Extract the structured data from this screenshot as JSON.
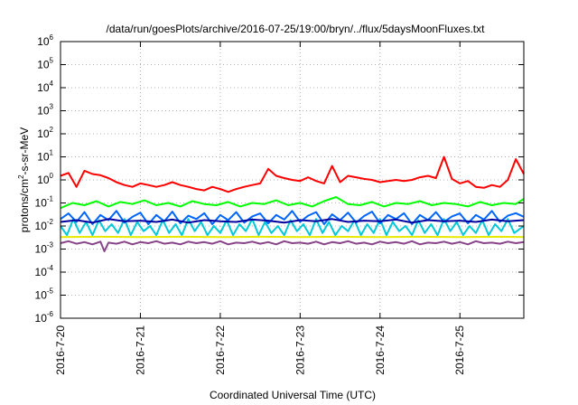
{
  "chart_data": {
    "type": "line",
    "title": "/data/run/goesPlots/archive/2016-07-25/19:00/bryn/../flux/5daysMoonFluxes.txt",
    "xlabel": "Coordinated Universal Time (UTC)",
    "ylabel": {
      "base": "protons/cm",
      "sup": "2",
      "rest": "-s-sr-MeV"
    },
    "x_range": [
      "2016-07-20",
      "2016-07-25 19:00"
    ],
    "x_ticks": [
      "2016-7-20",
      "2016-7-21",
      "2016-7-22",
      "2016-7-23",
      "2016-7-24",
      "2016-7-25"
    ],
    "y_scale": "log",
    "ylim": [
      1e-06,
      1000000.0
    ],
    "y_ticks": [
      {
        "base": "10",
        "exp": "-6",
        "value": 1e-06
      },
      {
        "base": "10",
        "exp": "-5",
        "value": 1e-05
      },
      {
        "base": "10",
        "exp": "-4",
        "value": 0.0001
      },
      {
        "base": "10",
        "exp": "-3",
        "value": 0.001
      },
      {
        "base": "10",
        "exp": "-2",
        "value": 0.01
      },
      {
        "base": "10",
        "exp": "-1",
        "value": 0.1
      },
      {
        "base": "10",
        "exp": "0",
        "value": 1
      },
      {
        "base": "10",
        "exp": "1",
        "value": 10
      },
      {
        "base": "10",
        "exp": "2",
        "value": 100
      },
      {
        "base": "10",
        "exp": "3",
        "value": 1000
      },
      {
        "base": "10",
        "exp": "4",
        "value": 10000
      },
      {
        "base": "10",
        "exp": "5",
        "value": 100000
      },
      {
        "base": "10",
        "exp": "6",
        "value": 1000000
      }
    ],
    "grid": true,
    "legend": "none",
    "series": [
      {
        "color": "#ff0000",
        "x_days": [
          0.0,
          0.1,
          0.2,
          0.3,
          0.4,
          0.5,
          0.6,
          0.7,
          0.8,
          0.9,
          1.0,
          1.1,
          1.2,
          1.3,
          1.4,
          1.5,
          1.6,
          1.7,
          1.8,
          1.9,
          2.0,
          2.1,
          2.2,
          2.3,
          2.4,
          2.5,
          2.6,
          2.7,
          2.8,
          2.9,
          3.0,
          3.1,
          3.2,
          3.3,
          3.4,
          3.5,
          3.6,
          3.7,
          3.8,
          3.9,
          4.0,
          4.1,
          4.2,
          4.3,
          4.4,
          4.5,
          4.6,
          4.7,
          4.8,
          4.9,
          5.0,
          5.1,
          5.2,
          5.3,
          5.4,
          5.5,
          5.6,
          5.7,
          5.8
        ],
        "values": [
          1.5,
          2.0,
          0.5,
          2.5,
          1.8,
          1.6,
          1.2,
          0.8,
          0.6,
          0.5,
          0.7,
          0.6,
          0.5,
          0.6,
          0.8,
          0.6,
          0.5,
          0.4,
          0.35,
          0.5,
          0.4,
          0.3,
          0.4,
          0.5,
          0.6,
          0.7,
          3.0,
          1.5,
          1.2,
          1.0,
          0.9,
          1.3,
          0.9,
          0.7,
          4.0,
          0.8,
          1.5,
          1.3,
          1.1,
          1.0,
          0.8,
          0.9,
          1.0,
          0.9,
          1.0,
          1.3,
          1.5,
          1.2,
          10.0,
          1.1,
          0.7,
          0.9,
          0.5,
          0.45,
          0.6,
          0.5,
          1.0,
          8.0,
          1.8
        ]
      },
      {
        "color": "#00ff00",
        "x_days": [
          0.0,
          0.15,
          0.3,
          0.45,
          0.6,
          0.75,
          0.9,
          1.05,
          1.2,
          1.35,
          1.5,
          1.65,
          1.8,
          1.95,
          2.1,
          2.25,
          2.4,
          2.55,
          2.7,
          2.85,
          3.0,
          3.15,
          3.3,
          3.45,
          3.6,
          3.75,
          3.9,
          4.05,
          4.2,
          4.35,
          4.5,
          4.65,
          4.8,
          4.95,
          5.1,
          5.25,
          5.4,
          5.55,
          5.7,
          5.8
        ],
        "values": [
          0.06,
          0.1,
          0.08,
          0.12,
          0.07,
          0.11,
          0.09,
          0.13,
          0.08,
          0.1,
          0.07,
          0.12,
          0.09,
          0.08,
          0.11,
          0.07,
          0.1,
          0.09,
          0.13,
          0.08,
          0.1,
          0.07,
          0.12,
          0.18,
          0.09,
          0.08,
          0.11,
          0.07,
          0.1,
          0.09,
          0.12,
          0.08,
          0.1,
          0.09,
          0.07,
          0.11,
          0.08,
          0.1,
          0.09,
          0.15
        ]
      },
      {
        "color": "#00c8d8",
        "x_days": [
          0.0,
          0.08,
          0.16,
          0.24,
          0.32,
          0.4,
          0.48,
          0.56,
          0.64,
          0.72,
          0.8,
          0.88,
          0.96,
          1.04,
          1.12,
          1.2,
          1.28,
          1.36,
          1.44,
          1.52,
          1.6,
          1.68,
          1.76,
          1.84,
          1.92,
          2.0,
          2.08,
          2.16,
          2.24,
          2.32,
          2.4,
          2.48,
          2.56,
          2.64,
          2.72,
          2.8,
          2.88,
          2.96,
          3.04,
          3.12,
          3.2,
          3.28,
          3.36,
          3.44,
          3.52,
          3.6,
          3.68,
          3.76,
          3.84,
          3.92,
          4.0,
          4.08,
          4.16,
          4.24,
          4.32,
          4.4,
          4.48,
          4.56,
          4.64,
          4.72,
          4.8,
          4.88,
          4.96,
          5.04,
          5.12,
          5.2,
          5.28,
          5.36,
          5.44,
          5.52,
          5.6,
          5.68,
          5.8
        ],
        "values": [
          0.01,
          0.004,
          0.02,
          0.005,
          0.015,
          0.004,
          0.018,
          0.006,
          0.012,
          0.005,
          0.02,
          0.004,
          0.015,
          0.006,
          0.01,
          0.004,
          0.018,
          0.005,
          0.012,
          0.004,
          0.02,
          0.006,
          0.015,
          0.004,
          0.01,
          0.005,
          0.018,
          0.004,
          0.012,
          0.006,
          0.02,
          0.004,
          0.015,
          0.005,
          0.01,
          0.004,
          0.018,
          0.006,
          0.012,
          0.004,
          0.02,
          0.005,
          0.015,
          0.004,
          0.01,
          0.006,
          0.018,
          0.004,
          0.012,
          0.005,
          0.02,
          0.004,
          0.015,
          0.006,
          0.01,
          0.004,
          0.018,
          0.005,
          0.012,
          0.004,
          0.02,
          0.006,
          0.015,
          0.004,
          0.01,
          0.005,
          0.018,
          0.004,
          0.012,
          0.006,
          0.02,
          0.005,
          0.01
        ]
      },
      {
        "color": "#0066ff",
        "x_days": [
          0.0,
          0.1,
          0.2,
          0.3,
          0.4,
          0.5,
          0.6,
          0.7,
          0.8,
          0.9,
          1.0,
          1.1,
          1.2,
          1.3,
          1.4,
          1.5,
          1.6,
          1.7,
          1.8,
          1.9,
          2.0,
          2.1,
          2.2,
          2.3,
          2.4,
          2.5,
          2.6,
          2.7,
          2.8,
          2.9,
          3.0,
          3.1,
          3.2,
          3.3,
          3.4,
          3.5,
          3.6,
          3.7,
          3.8,
          3.9,
          4.0,
          4.1,
          4.2,
          4.3,
          4.4,
          4.5,
          4.6,
          4.7,
          4.8,
          4.9,
          5.0,
          5.1,
          5.2,
          5.3,
          5.4,
          5.5,
          5.6,
          5.7,
          5.8
        ],
        "values": [
          0.02,
          0.035,
          0.015,
          0.04,
          0.012,
          0.03,
          0.018,
          0.045,
          0.014,
          0.025,
          0.038,
          0.012,
          0.03,
          0.016,
          0.042,
          0.013,
          0.028,
          0.02,
          0.036,
          0.012,
          0.03,
          0.018,
          0.04,
          0.014,
          0.026,
          0.035,
          0.013,
          0.03,
          0.019,
          0.045,
          0.015,
          0.028,
          0.04,
          0.012,
          0.032,
          0.018,
          0.038,
          0.014,
          0.027,
          0.042,
          0.013,
          0.03,
          0.02,
          0.036,
          0.012,
          0.03,
          0.018,
          0.04,
          0.015,
          0.026,
          0.035,
          0.013,
          0.03,
          0.019,
          0.045,
          0.015,
          0.028,
          0.036,
          0.025
        ]
      },
      {
        "color": "#0000a0",
        "x_days": [
          0.0,
          0.2,
          0.4,
          0.6,
          0.8,
          1.0,
          1.2,
          1.4,
          1.6,
          1.8,
          2.0,
          2.2,
          2.4,
          2.6,
          2.8,
          3.0,
          3.2,
          3.4,
          3.6,
          3.8,
          4.0,
          4.2,
          4.4,
          4.6,
          4.8,
          5.0,
          5.2,
          5.4,
          5.6,
          5.8
        ],
        "values": [
          0.015,
          0.018,
          0.014,
          0.02,
          0.016,
          0.017,
          0.015,
          0.019,
          0.014,
          0.018,
          0.016,
          0.015,
          0.019,
          0.017,
          0.014,
          0.018,
          0.016,
          0.02,
          0.015,
          0.017,
          0.016,
          0.019,
          0.014,
          0.018,
          0.016,
          0.017,
          0.015,
          0.019,
          0.016,
          0.018
        ]
      },
      {
        "color": "#e8e800",
        "x_days": [
          0.0,
          0.5,
          1.0,
          1.5,
          2.0,
          2.5,
          3.0,
          3.5,
          4.0,
          4.5,
          5.0,
          5.5,
          5.8
        ],
        "values": [
          0.0033,
          0.0034,
          0.0033,
          0.0034,
          0.0033,
          0.0034,
          0.0033,
          0.0034,
          0.0033,
          0.0034,
          0.0033,
          0.0034,
          0.0033
        ]
      },
      {
        "color": "#884488",
        "x_days": [
          0.0,
          0.1,
          0.2,
          0.3,
          0.4,
          0.5,
          0.55,
          0.6,
          0.7,
          0.8,
          0.9,
          1.0,
          1.1,
          1.2,
          1.3,
          1.4,
          1.5,
          1.6,
          1.7,
          1.8,
          1.9,
          2.0,
          2.1,
          2.2,
          2.3,
          2.4,
          2.5,
          2.6,
          2.7,
          2.8,
          2.9,
          3.0,
          3.1,
          3.2,
          3.3,
          3.4,
          3.5,
          3.6,
          3.7,
          3.8,
          3.9,
          4.0,
          4.1,
          4.2,
          4.3,
          4.4,
          4.5,
          4.6,
          4.7,
          4.8,
          4.9,
          5.0,
          5.1,
          5.2,
          5.3,
          5.4,
          5.5,
          5.6,
          5.7,
          5.8
        ],
        "values": [
          0.0018,
          0.0022,
          0.0017,
          0.002,
          0.0016,
          0.0021,
          0.0008,
          0.0019,
          0.0017,
          0.0021,
          0.0016,
          0.002,
          0.0018,
          0.0022,
          0.0017,
          0.0019,
          0.0016,
          0.0021,
          0.0018,
          0.002,
          0.0017,
          0.0022,
          0.0016,
          0.0019,
          0.0018,
          0.0021,
          0.0017,
          0.002,
          0.0016,
          0.0022,
          0.0018,
          0.0019,
          0.0017,
          0.0021,
          0.0016,
          0.002,
          0.0018,
          0.0022,
          0.0017,
          0.0019,
          0.0016,
          0.0021,
          0.0018,
          0.002,
          0.0017,
          0.0022,
          0.0016,
          0.0019,
          0.0018,
          0.0021,
          0.0017,
          0.002,
          0.0016,
          0.0022,
          0.0018,
          0.0019,
          0.0017,
          0.0021,
          0.0018,
          0.002
        ]
      }
    ]
  }
}
